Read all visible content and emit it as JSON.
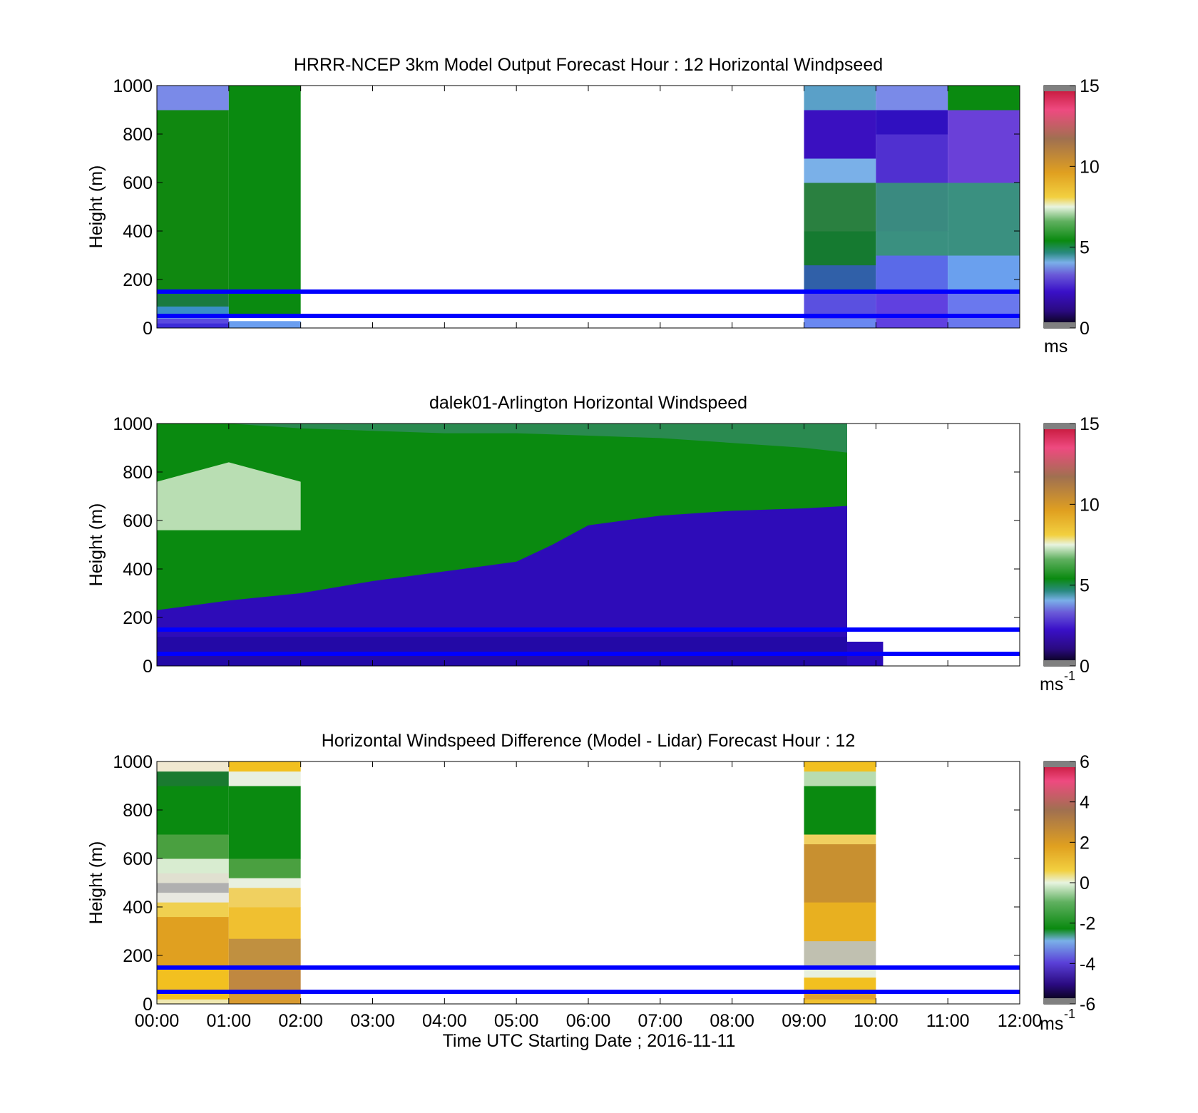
{
  "figure": {
    "xlabel": "Time UTC  Starting Date ; 2016-11-11",
    "xticks": [
      "00:00",
      "01:00",
      "02:00",
      "03:00",
      "04:00",
      "05:00",
      "06:00",
      "07:00",
      "08:00",
      "09:00",
      "10:00",
      "11:00",
      "12:00"
    ],
    "reference_lines_m": [
      150,
      50
    ],
    "reference_line_color": "#0000ff"
  },
  "chart_data": [
    {
      "type": "heatmap",
      "title": "HRRR-NCEP 3km Model Output   Forecast Hour : 12 Horizontal Windpseed",
      "ylabel": "Height (m)",
      "xlim_hours": [
        0,
        12
      ],
      "ylim": [
        0,
        1000
      ],
      "yticks": [
        "0",
        "200",
        "400",
        "600",
        "800",
        "1000"
      ],
      "colorbar": {
        "ticks": [
          "0",
          "5",
          "10",
          "15"
        ],
        "range": [
          0,
          15
        ],
        "unit": "ms"
      },
      "columns": [
        {
          "x_hours": [
            0,
            1
          ],
          "height_bands": [
            [
              0,
              20,
              "#3c2cd8"
            ],
            [
              20,
              40,
              "#5a4ae0"
            ],
            [
              40,
              60,
              "#6f8ff0"
            ],
            [
              60,
              90,
              "#3a8fc8"
            ],
            [
              90,
              150,
              "#1a7a40"
            ],
            [
              150,
              900,
              "#108810"
            ],
            [
              900,
              1000,
              "#7a8ae8"
            ]
          ]
        },
        {
          "x_hours": [
            1,
            2
          ],
          "height_bands": [
            [
              0,
              30,
              "#6a9ef0"
            ],
            [
              30,
              60,
              "#ffffff"
            ],
            [
              60,
              1000,
              "#0a8a10"
            ]
          ]
        },
        {
          "x_hours": [
            9,
            10
          ],
          "height_bands": [
            [
              0,
              40,
              "#6a88f0"
            ],
            [
              40,
              150,
              "#5a50e0"
            ],
            [
              150,
              260,
              "#3060a8"
            ],
            [
              260,
              400,
              "#157a30"
            ],
            [
              400,
              600,
              "#2a8040"
            ],
            [
              600,
              700,
              "#7ab0e8"
            ],
            [
              700,
              900,
              "#3a10c0"
            ],
            [
              900,
              1000,
              "#5aa0c8"
            ]
          ]
        },
        {
          "x_hours": [
            10,
            11
          ],
          "height_bands": [
            [
              0,
              150,
              "#6040e0"
            ],
            [
              150,
              300,
              "#5a6ae8"
            ],
            [
              300,
              400,
              "#3a9080"
            ],
            [
              400,
              600,
              "#3a8a80"
            ],
            [
              600,
              800,
              "#5030d0"
            ],
            [
              800,
              900,
              "#3010c0"
            ],
            [
              900,
              1000,
              "#7a8ae8"
            ]
          ]
        },
        {
          "x_hours": [
            11,
            12
          ],
          "height_bands": [
            [
              0,
              150,
              "#6a78ee"
            ],
            [
              150,
              300,
              "#6aa0ee"
            ],
            [
              300,
              400,
              "#3a9080"
            ],
            [
              400,
              600,
              "#3a9080"
            ],
            [
              600,
              900,
              "#6a40d8"
            ],
            [
              900,
              1000,
              "#0a8a10"
            ]
          ]
        }
      ]
    },
    {
      "type": "heatmap",
      "title": "dalek01-Arlington  Horizontal Windspeed",
      "ylabel": "Height (m)",
      "xlim_hours": [
        0,
        12
      ],
      "ylim": [
        0,
        1000
      ],
      "yticks": [
        "0",
        "200",
        "400",
        "600",
        "800",
        "1000"
      ],
      "colorbar": {
        "ticks": [
          "0",
          "5",
          "10",
          "15"
        ],
        "range": [
          0,
          15
        ],
        "unit": "ms",
        "unit_exp": "-1"
      },
      "lidar_coverage_hours": [
        0,
        9.6
      ],
      "lidar_coverage_top_m": 1000,
      "lidar_layers": [
        {
          "name": "low-jet",
          "color": "#2e0cb8",
          "profile_x": [
            0,
            1,
            2,
            3,
            4,
            5,
            5.5,
            6,
            6.5,
            7,
            8,
            9,
            9.6
          ],
          "top_m": [
            230,
            270,
            300,
            350,
            390,
            430,
            500,
            580,
            600,
            620,
            640,
            650,
            660
          ]
        },
        {
          "name": "green-mid",
          "color": "#0a8a10",
          "profile_x": [
            0,
            1,
            2,
            3,
            4,
            5,
            6,
            7,
            8,
            9,
            9.6
          ],
          "top_m": [
            1000,
            1000,
            980,
            970,
            960,
            960,
            950,
            940,
            920,
            900,
            880
          ]
        },
        {
          "name": "light-core",
          "color": "#d8ecd0",
          "profile_x": [
            0,
            0.5,
            1,
            1.5,
            2
          ],
          "top_m": [
            760,
            800,
            840,
            800,
            760
          ]
        }
      ]
    },
    {
      "type": "heatmap",
      "title": "Horizontal Windspeed Difference (Model - Lidar) Forecast Hour : 12",
      "ylabel": "Height (m)",
      "xlim_hours": [
        0,
        12
      ],
      "ylim": [
        0,
        1000
      ],
      "yticks": [
        "0",
        "200",
        "400",
        "600",
        "800",
        "1000"
      ],
      "colorbar": {
        "ticks": [
          "-6",
          "-4",
          "-2",
          "0",
          "2",
          "4",
          "6"
        ],
        "range": [
          -6,
          6
        ],
        "unit": "ms",
        "unit_exp": "-1"
      },
      "columns": [
        {
          "x_hours": [
            0,
            1
          ],
          "height_bands": [
            [
              0,
              20,
              "#f0e8b0"
            ],
            [
              20,
              150,
              "#f2c020"
            ],
            [
              150,
              360,
              "#e0a020"
            ],
            [
              360,
              420,
              "#f0d050"
            ],
            [
              420,
              460,
              "#e8e8e0"
            ],
            [
              460,
              500,
              "#b0b0b0"
            ],
            [
              500,
              540,
              "#e0e0d0"
            ],
            [
              540,
              600,
              "#d8ecd0"
            ],
            [
              600,
              700,
              "#4aa040"
            ],
            [
              700,
              900,
              "#0a8a10"
            ],
            [
              900,
              960,
              "#1a7a30"
            ],
            [
              960,
              1000,
              "#f0e8d0"
            ]
          ]
        },
        {
          "x_hours": [
            1,
            2
          ],
          "height_bands": [
            [
              0,
              40,
              "#d89a30"
            ],
            [
              40,
              150,
              "#c08840"
            ],
            [
              150,
              270,
              "#c09040"
            ],
            [
              270,
              400,
              "#f0c030"
            ],
            [
              400,
              480,
              "#f0d060"
            ],
            [
              480,
              520,
              "#e8f0e0"
            ],
            [
              520,
              600,
              "#4aa040"
            ],
            [
              600,
              900,
              "#0a8a10"
            ],
            [
              900,
              960,
              "#e8f0e0"
            ],
            [
              960,
              1000,
              "#f2c020"
            ]
          ]
        },
        {
          "x_hours": [
            9,
            10
          ],
          "height_bands": [
            [
              0,
              20,
              "#f0c030"
            ],
            [
              20,
              60,
              "#e0a030"
            ],
            [
              60,
              110,
              "#f2c020"
            ],
            [
              110,
              150,
              "#e8f0e0"
            ],
            [
              150,
              260,
              "#c0c0b0"
            ],
            [
              260,
              420,
              "#e8b020"
            ],
            [
              420,
              660,
              "#c89030"
            ],
            [
              660,
              700,
              "#f0d060"
            ],
            [
              700,
              900,
              "#0a8a10"
            ],
            [
              900,
              960,
              "#b8dcb0"
            ],
            [
              960,
              1000,
              "#f2c020"
            ]
          ]
        }
      ]
    }
  ]
}
